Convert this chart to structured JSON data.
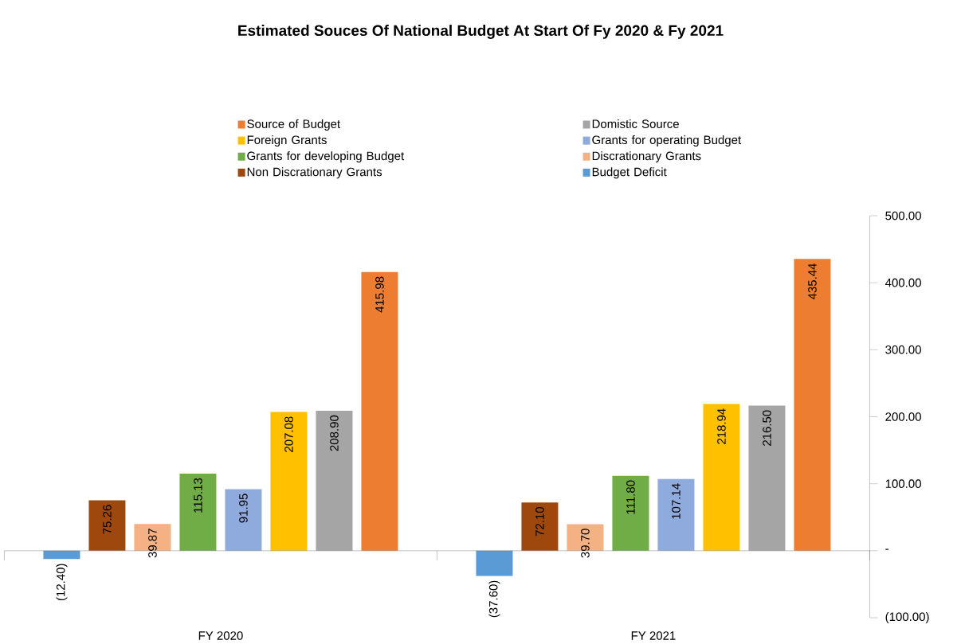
{
  "chart_data": {
    "type": "bar",
    "title": "Estimated Souces Of National Budget At Start Of Fy 2020 & Fy 2021",
    "categories": [
      "FY 2020",
      "FY 2021"
    ],
    "series": [
      {
        "name": "Budget Deficit",
        "color": "#5b9bd5",
        "values": [
          -12.4,
          -37.6
        ],
        "value_labels": [
          "(12.40)",
          "(37.60)"
        ]
      },
      {
        "name": "Non Discrationary Grants",
        "color": "#9e480e",
        "values": [
          75.26,
          72.1
        ],
        "value_labels": [
          "75.26",
          "72.10"
        ]
      },
      {
        "name": "Discrationary Grants",
        "color": "#f4b183",
        "values": [
          39.87,
          39.7
        ],
        "value_labels": [
          "39.87",
          "39.70"
        ]
      },
      {
        "name": "Grants for developing Budget",
        "color": "#70ad47",
        "values": [
          115.13,
          111.8
        ],
        "value_labels": [
          "115.13",
          "111.80"
        ]
      },
      {
        "name": "Grants for operating Budget",
        "color": "#8faadc",
        "values": [
          91.95,
          107.14
        ],
        "value_labels": [
          "91.95",
          "107.14"
        ]
      },
      {
        "name": "Foreign Grants",
        "color": "#ffc000",
        "values": [
          207.08,
          218.94
        ],
        "value_labels": [
          "207.08",
          "218.94"
        ]
      },
      {
        "name": "Domistic Source",
        "color": "#a5a5a5",
        "values": [
          208.9,
          216.5
        ],
        "value_labels": [
          "208.90",
          "216.50"
        ]
      },
      {
        "name": "Source of Budget",
        "color": "#ed7d31",
        "values": [
          415.98,
          435.44
        ],
        "value_labels": [
          "415.98",
          "435.44"
        ]
      }
    ],
    "ylim": [
      -100,
      500
    ],
    "yticks": [
      {
        "value": -100,
        "label": "(100.00)"
      },
      {
        "value": 0,
        "label": "-"
      },
      {
        "value": 100,
        "label": "100.00"
      },
      {
        "value": 200,
        "label": "200.00"
      },
      {
        "value": 300,
        "label": "300.00"
      },
      {
        "value": 400,
        "label": "400.00"
      },
      {
        "value": 500,
        "label": "500.00"
      }
    ],
    "legend": "top"
  }
}
